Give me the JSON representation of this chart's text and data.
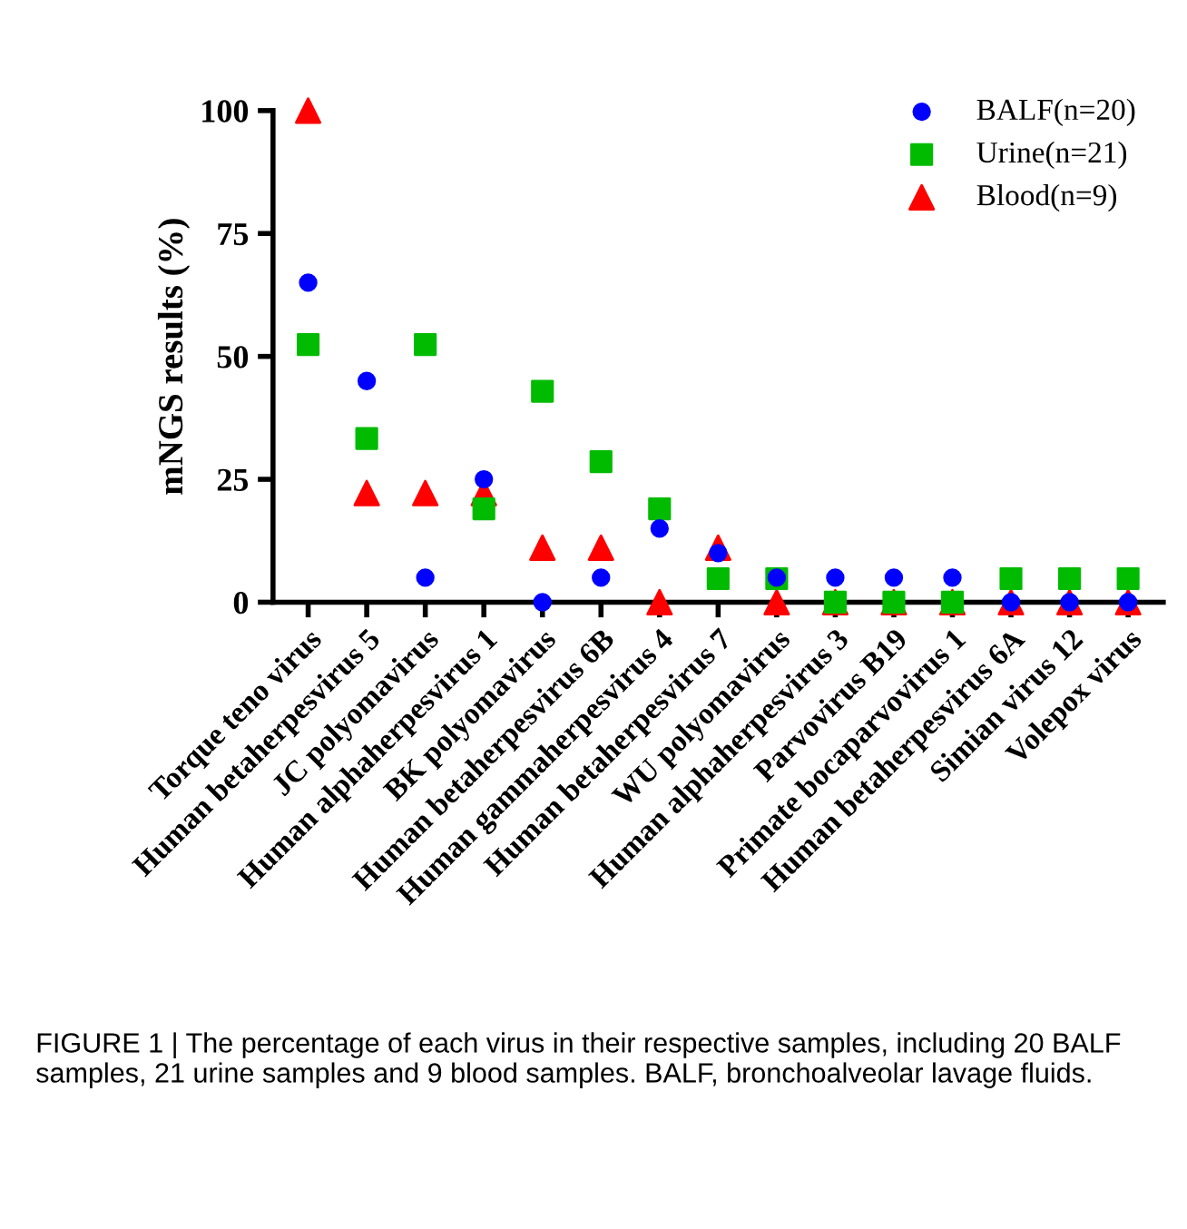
{
  "chart_data": {
    "type": "scatter",
    "ylabel": "mNGS results (%)",
    "categories": [
      "Torque teno virus",
      "Human betaherpesvirus 5",
      "JC polyomavirus",
      "Human alphaherpesvirus 1",
      "BK polyomavirus",
      "Human betaherpesvirus 6B",
      "Human gammaherpesvirus 4",
      "Human betaherpesvirus 7",
      "WU polyomavirus",
      "Human alphaherpesvirus 3",
      "Parvovirus B19",
      "Primate bocaparvovirus 1",
      "Human betaherpesvirus 6A",
      "Simian virus 12",
      "Volepox virus"
    ],
    "series": [
      {
        "name": "BALF(n=20)",
        "color": "#0000ff",
        "marker": "circle",
        "values": [
          65,
          45,
          5,
          25,
          0,
          5,
          15,
          10,
          5,
          5,
          5,
          5,
          0,
          0,
          0
        ]
      },
      {
        "name": "Urine(n=21)",
        "color": "#00bb00",
        "marker": "square",
        "values": [
          52.4,
          33.3,
          52.4,
          19,
          42.9,
          28.6,
          19,
          4.8,
          4.8,
          0,
          0,
          0,
          4.8,
          4.8,
          4.8
        ]
      },
      {
        "name": "Blood(n=9)",
        "color": "#ff0000",
        "marker": "triangle",
        "values": [
          100,
          22.2,
          22.2,
          22.2,
          11.1,
          11.1,
          0,
          11.1,
          0,
          0,
          0,
          0,
          0,
          0,
          0
        ]
      }
    ],
    "ylim": [
      0,
      100
    ],
    "yticks": [
      0,
      25,
      50,
      75,
      100
    ],
    "grid": false,
    "legend": "top right",
    "annotations": [
      "FIGURE 1 | The percentage of each virus in their respective samples, including 20 BALF samples, 21 urine samples and 9 blood samples. BALF, bronchoalveolar lavage fluids."
    ]
  }
}
